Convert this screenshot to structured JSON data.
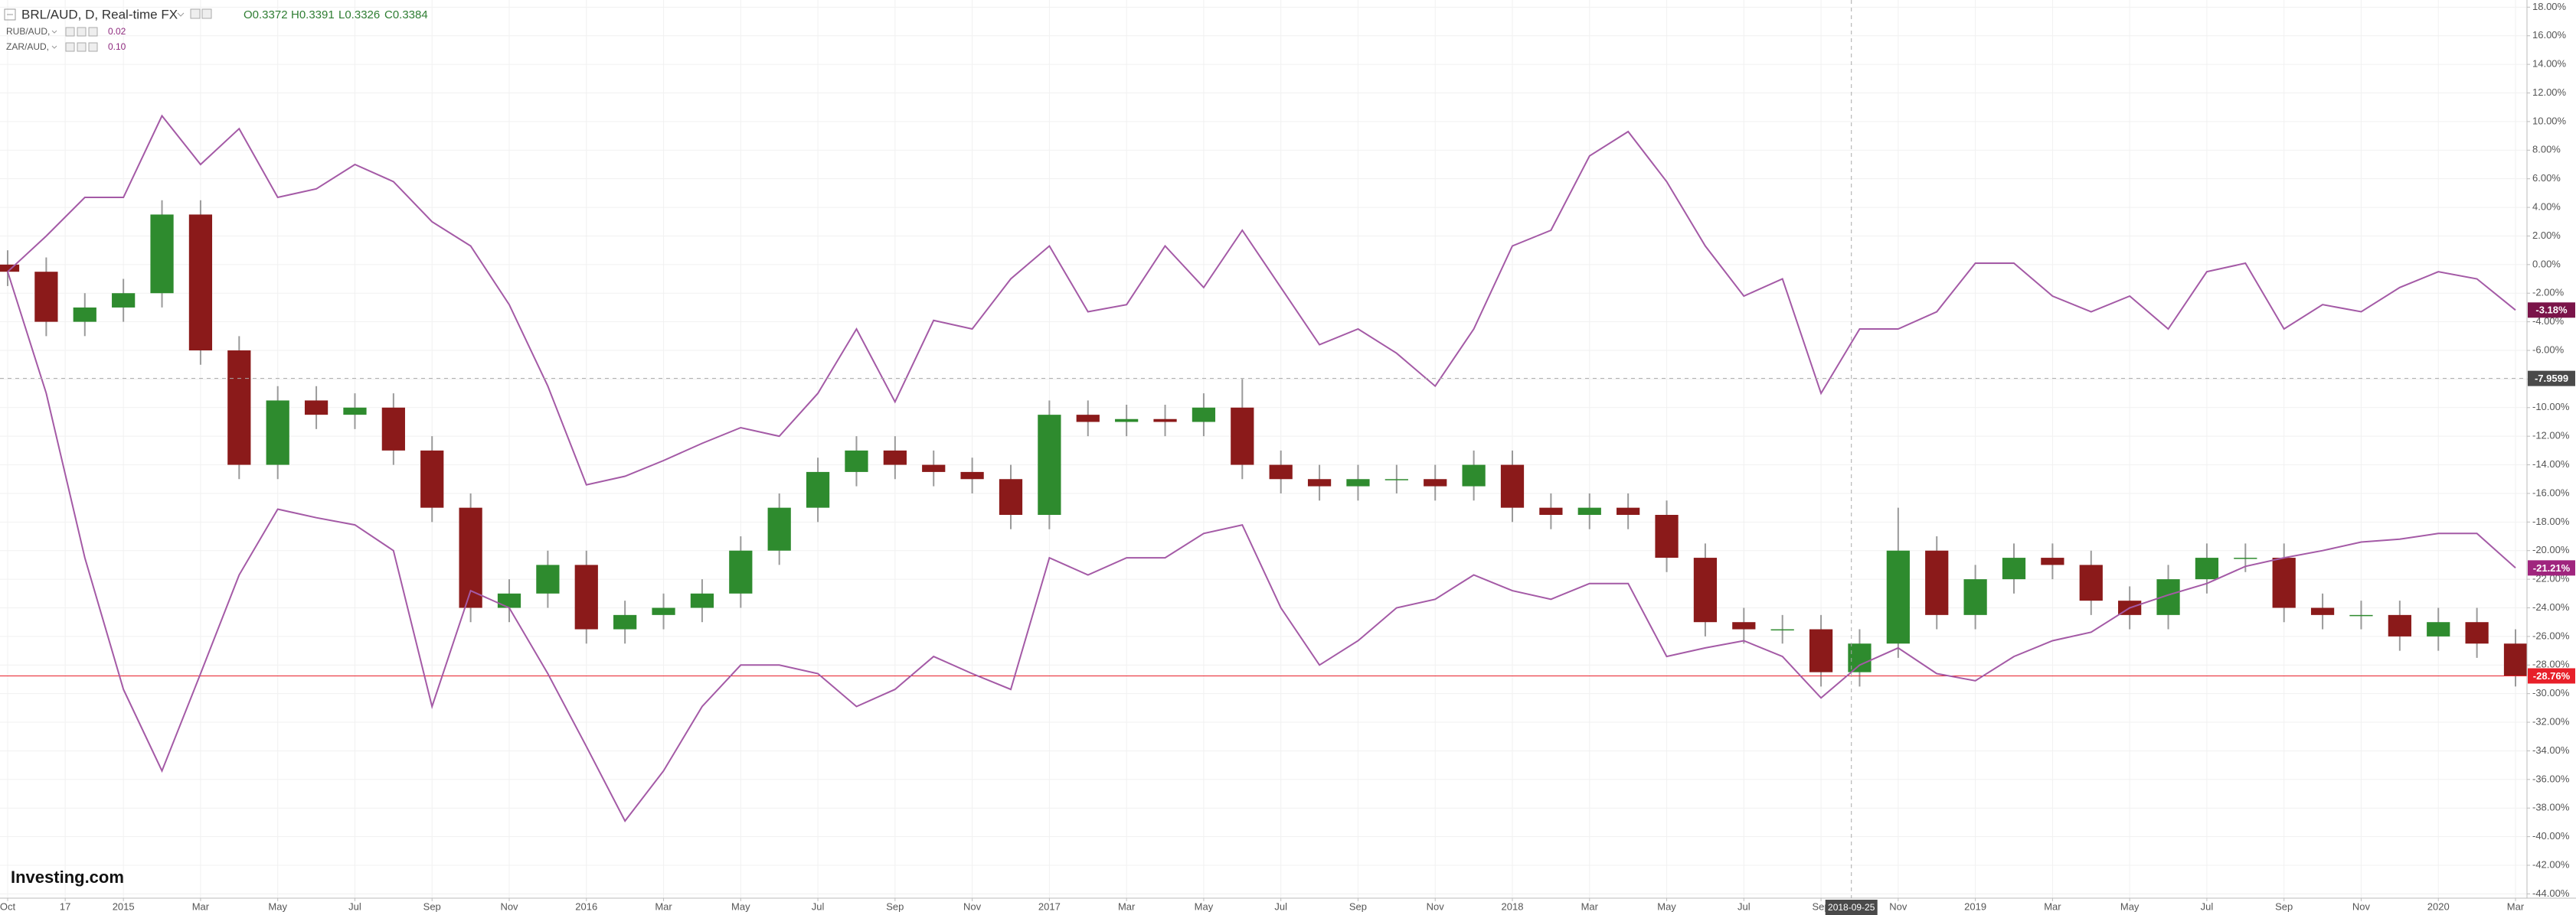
{
  "chart_data": {
    "type": "candlestick",
    "title": "BRL/AUD, D, Real-time FX",
    "ohlc_labels": [
      "O0.3372",
      "H0.3391",
      "L0.3326",
      "C0.3384"
    ],
    "x": [
      "2014-10",
      "2014-11",
      "2014-12",
      "2015-01",
      "2015-02",
      "2015-03",
      "2015-04",
      "2015-05",
      "2015-06",
      "2015-07",
      "2015-08",
      "2015-09",
      "2015-10",
      "2015-11",
      "2015-12",
      "2016-01",
      "2016-02",
      "2016-03",
      "2016-04",
      "2016-05",
      "2016-06",
      "2016-07",
      "2016-08",
      "2016-09",
      "2016-10",
      "2016-11",
      "2016-12",
      "2017-01",
      "2017-02",
      "2017-03",
      "2017-04",
      "2017-05",
      "2017-06",
      "2017-07",
      "2017-08",
      "2017-09",
      "2017-10",
      "2017-11",
      "2017-12",
      "2018-01",
      "2018-02",
      "2018-03",
      "2018-04",
      "2018-05",
      "2018-06",
      "2018-07",
      "2018-08",
      "2018-09",
      "2018-10",
      "2018-11",
      "2018-12",
      "2019-01",
      "2019-02",
      "2019-03",
      "2019-04",
      "2019-05",
      "2019-06",
      "2019-07",
      "2019-08",
      "2019-09",
      "2019-10",
      "2019-11",
      "2019-12",
      "2020-01",
      "2020-02",
      "2020-03"
    ],
    "xlim": [
      "2014-10",
      "2020-03"
    ],
    "ylim": [
      -44.3,
      18.5
    ],
    "grid": true,
    "series": [
      {
        "name": "BRL/AUD, D, Real-time FX",
        "type": "candlestick",
        "up_color": "#2e8b2e",
        "down_color": "#8b1a1a",
        "color": "#9a9a9a",
        "tag_color": "#e8202a",
        "last_label": "-28.76%",
        "open": [
          0,
          -0.5,
          -4,
          -3,
          -2,
          3.5,
          -6,
          -14,
          -9.5,
          -10.5,
          -10,
          -13,
          -17,
          -24,
          -23,
          -21,
          -25.5,
          -24.5,
          -24,
          -23,
          -20,
          -17,
          -14.5,
          -13,
          -14,
          -14.5,
          -15,
          -17.5,
          -10.5,
          -11,
          -10.8,
          -11,
          -10,
          -14,
          -15,
          -15.5,
          -15,
          -15,
          -15.5,
          -14,
          -17,
          -17.5,
          -17,
          -17.5,
          -20.5,
          -25,
          -25.5,
          -25.5,
          -28.5,
          -26.5,
          -20,
          -24.5,
          -22,
          -20.5,
          -21,
          -23.5,
          -24.5,
          -22,
          -20.5,
          -20.5,
          -24,
          -24.5,
          -24.5,
          -26,
          -25,
          -26.5
        ],
        "high": [
          1,
          0.5,
          -2,
          -1,
          4.5,
          4.5,
          -5,
          -8.5,
          -8.5,
          -9,
          -9,
          -12,
          -16,
          -22,
          -20,
          -20,
          -23.5,
          -23,
          -22,
          -19,
          -16,
          -13.5,
          -12,
          -12,
          -13,
          -13.5,
          -14,
          -9.5,
          -9.5,
          -9.8,
          -9.8,
          -9,
          -8,
          -13,
          -14,
          -14,
          -14,
          -14,
          -13,
          -13,
          -16,
          -16,
          -16,
          -16.5,
          -19.5,
          -24,
          -24.5,
          -24.5,
          -25.5,
          -17,
          -19,
          -21,
          -19.5,
          -19.5,
          -20,
          -22.5,
          -21,
          -19.5,
          -19.5,
          -19.5,
          -23,
          -23.5,
          -23.5,
          -24,
          -24,
          -25.5
        ],
        "low": [
          -1.5,
          -5,
          -5,
          -4,
          -3,
          -7,
          -15,
          -15,
          -11.5,
          -11.5,
          -14,
          -18,
          -25,
          -25,
          -24,
          -26.5,
          -26.5,
          -25.5,
          -25,
          -24,
          -21,
          -18,
          -15.5,
          -15,
          -15.5,
          -16,
          -18.5,
          -18.5,
          -12,
          -12,
          -12,
          -12,
          -15,
          -16,
          -16.5,
          -16.5,
          -16,
          -16.5,
          -16.5,
          -18,
          -18.5,
          -18.5,
          -18.5,
          -21.5,
          -26,
          -26.5,
          -26.5,
          -29.5,
          -29.5,
          -27.5,
          -25.5,
          -25.5,
          -23,
          -22,
          -24.5,
          -25.5,
          -25.5,
          -23,
          -21.5,
          -25,
          -25.5,
          -25.5,
          -27,
          -27,
          -27.5,
          -29.5
        ],
        "close": [
          -0.5,
          -4,
          -3,
          -2,
          3.5,
          -6,
          -14,
          -9.5,
          -10.5,
          -10,
          -13,
          -17,
          -24,
          -23,
          -21,
          -25.5,
          -24.5,
          -24,
          -23,
          -20,
          -17,
          -14.5,
          -13,
          -14,
          -14.5,
          -15,
          -17.5,
          -10.5,
          -11,
          -10.8,
          -11,
          -10,
          -14,
          -15,
          -15.5,
          -15,
          -15,
          -15.5,
          -14,
          -17,
          -17.5,
          -17,
          -17.5,
          -20.5,
          -25,
          -25.5,
          -25.5,
          -28.5,
          -26.5,
          -20,
          -24.5,
          -22,
          -20.5,
          -21,
          -23.5,
          -24.5,
          -22,
          -20.5,
          -20.5,
          -24,
          -24.5,
          -24.5,
          -26,
          -25,
          -26.5,
          -28.76
        ]
      },
      {
        "name": "RUB/AUD,",
        "type": "line",
        "color": "#a45aa6",
        "tag_color": "#7a1449",
        "legend_value": "0.02",
        "last_label": "-3.18%",
        "values": [
          -0.5,
          2,
          4.7,
          4.7,
          10.4,
          7,
          9.5,
          4.7,
          5.3,
          7,
          5.8,
          3,
          1.3,
          -2.8,
          -8.5,
          -15.4,
          -14.8,
          -13.7,
          -12.5,
          -11.4,
          -12,
          -9,
          -4.5,
          -9.6,
          -3.9,
          -4.5,
          -1,
          1.3,
          -3.3,
          -2.8,
          1.3,
          -1.6,
          2.4,
          -1.6,
          -5.6,
          -4.5,
          -6.2,
          -8.5,
          -4.5,
          1.3,
          2.4,
          7.6,
          9.3,
          5.8,
          1.3,
          -2.2,
          -1,
          -9,
          -4.5,
          -4.5,
          -3.3,
          0.1,
          0.1,
          -2.2,
          -3.3,
          -2.2,
          -4.5,
          -0.5,
          0.1,
          -4.5,
          -2.8,
          -3.3,
          -1.6,
          -0.5,
          -1,
          -3.18
        ]
      },
      {
        "name": "ZAR/AUD,",
        "type": "line",
        "color": "#a45aa6",
        "tag_color": "#a0257e",
        "legend_value": "0.10",
        "last_label": "-21.21%",
        "values": [
          -0.5,
          -9,
          -20.5,
          -29.7,
          -35.4,
          -28.6,
          -21.7,
          -17.1,
          -17.7,
          -18.2,
          -20,
          -30.9,
          -22.8,
          -24,
          -28.6,
          -33.7,
          -38.9,
          -35.4,
          -30.9,
          -28,
          -28,
          -28.6,
          -30.9,
          -29.7,
          -27.4,
          -28.6,
          -29.7,
          -20.5,
          -21.7,
          -20.5,
          -20.5,
          -18.8,
          -18.2,
          -24,
          -28,
          -26.3,
          -24,
          -23.4,
          -21.7,
          -22.8,
          -23.4,
          -22.3,
          -22.3,
          -27.4,
          -26.8,
          -26.3,
          -27.4,
          -30.3,
          -28,
          -26.8,
          -28.6,
          -29.1,
          -27.4,
          -26.3,
          -25.7,
          -24,
          -23.1,
          -22.3,
          -21.1,
          -20.5,
          -20,
          -19.4,
          -19.2,
          -18.8,
          -18.8,
          -21.21
        ]
      }
    ],
    "crosshair": {
      "x": "2018-09-25",
      "y": -7.9599,
      "tag_color": "#4a4a4a"
    },
    "xticks": [
      {
        "value": "2014-10",
        "label": "Oct"
      },
      {
        "value": "2014-11-16",
        "label": "17"
      },
      {
        "value": "2015-01",
        "label": "2015"
      },
      {
        "value": "2015-03",
        "label": "Mar"
      },
      {
        "value": "2015-05",
        "label": "May"
      },
      {
        "value": "2015-07",
        "label": "Jul"
      },
      {
        "value": "2015-09",
        "label": "Sep"
      },
      {
        "value": "2015-11",
        "label": "Nov"
      },
      {
        "value": "2016-01",
        "label": "2016"
      },
      {
        "value": "2016-03",
        "label": "Mar"
      },
      {
        "value": "2016-05",
        "label": "May"
      },
      {
        "value": "2016-07",
        "label": "Jul"
      },
      {
        "value": "2016-09",
        "label": "Sep"
      },
      {
        "value": "2016-11",
        "label": "Nov"
      },
      {
        "value": "2017-01",
        "label": "2017"
      },
      {
        "value": "2017-03",
        "label": "Mar"
      },
      {
        "value": "2017-05",
        "label": "May"
      },
      {
        "value": "2017-07",
        "label": "Jul"
      },
      {
        "value": "2017-09",
        "label": "Sep"
      },
      {
        "value": "2017-11",
        "label": "Nov"
      },
      {
        "value": "2018-01",
        "label": "2018"
      },
      {
        "value": "2018-03",
        "label": "Mar"
      },
      {
        "value": "2018-05",
        "label": "May"
      },
      {
        "value": "2018-07",
        "label": "Jul"
      },
      {
        "value": "2018-09",
        "label": "Sep"
      },
      {
        "value": "2018-11",
        "label": "Nov"
      },
      {
        "value": "2019-01",
        "label": "2019"
      },
      {
        "value": "2019-03",
        "label": "Mar"
      },
      {
        "value": "2019-05",
        "label": "May"
      },
      {
        "value": "2019-07",
        "label": "Jul"
      },
      {
        "value": "2019-09",
        "label": "Sep"
      },
      {
        "value": "2019-11",
        "label": "Nov"
      },
      {
        "value": "2020-01",
        "label": "2020"
      },
      {
        "value": "2020-03",
        "label": "Mar"
      }
    ],
    "yticks": [
      {
        "value": 18,
        "label": "18.00%"
      },
      {
        "value": 16,
        "label": "16.00%"
      },
      {
        "value": 14,
        "label": "14.00%"
      },
      {
        "value": 12,
        "label": "12.00%"
      },
      {
        "value": 10,
        "label": "10.00%"
      },
      {
        "value": 8,
        "label": "8.00%"
      },
      {
        "value": 6,
        "label": "6.00%"
      },
      {
        "value": 4,
        "label": "4.00%"
      },
      {
        "value": 2,
        "label": "2.00%"
      },
      {
        "value": 0,
        "label": "0.00%"
      },
      {
        "value": -2,
        "label": "-2.00%"
      },
      {
        "value": -4,
        "label": "-4.00%"
      },
      {
        "value": -6,
        "label": "-6.00%"
      },
      {
        "value": -8,
        "label": "-8.00%"
      },
      {
        "value": -10,
        "label": "-10.00%"
      },
      {
        "value": -12,
        "label": "-12.00%"
      },
      {
        "value": -14,
        "label": "-14.00%"
      },
      {
        "value": -16,
        "label": "-16.00%"
      },
      {
        "value": -18,
        "label": "-18.00%"
      },
      {
        "value": -20,
        "label": "-20.00%"
      },
      {
        "value": -22,
        "label": "-22.00%"
      },
      {
        "value": -24,
        "label": "-24.00%"
      },
      {
        "value": -26,
        "label": "-26.00%"
      },
      {
        "value": -28,
        "label": "-28.00%"
      },
      {
        "value": -30,
        "label": "-30.00%"
      },
      {
        "value": -32,
        "label": "-32.00%"
      },
      {
        "value": -34,
        "label": "-34.00%"
      },
      {
        "value": -36,
        "label": "-36.00%"
      },
      {
        "value": -38,
        "label": "-38.00%"
      },
      {
        "value": -40,
        "label": "-40.00%"
      },
      {
        "value": -42,
        "label": "-42.00%"
      },
      {
        "value": -44,
        "label": "-44.00%"
      }
    ]
  },
  "logo": "Investing.com"
}
